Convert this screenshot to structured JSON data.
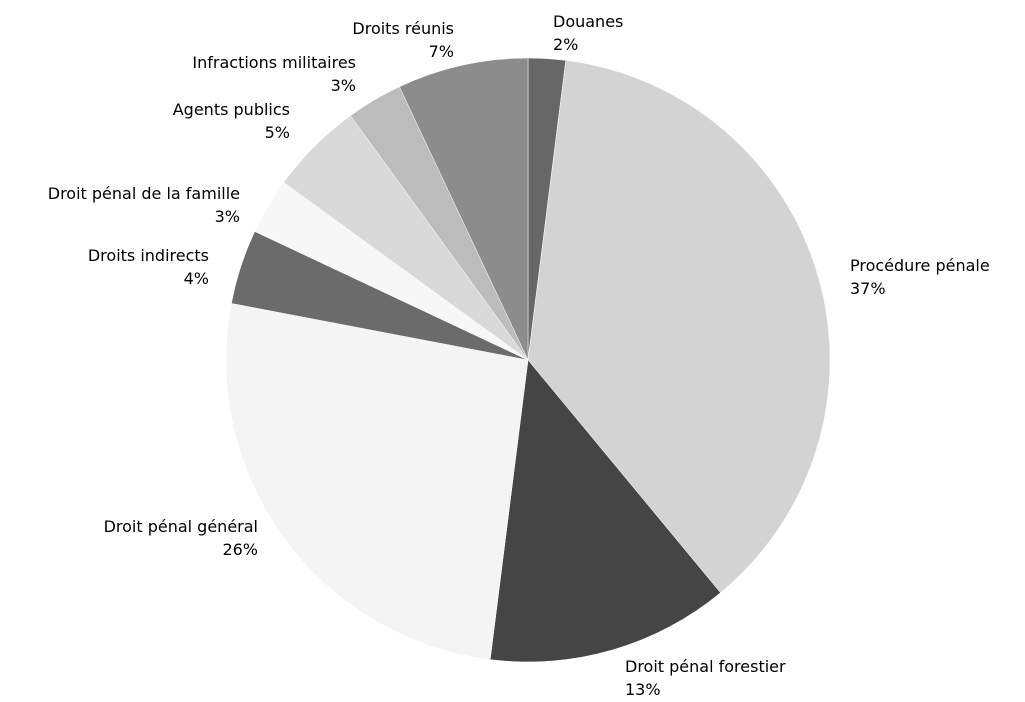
{
  "chart_data": {
    "type": "pie",
    "title": "",
    "start_angle_deg": 0,
    "direction": "clockwise",
    "slices": [
      {
        "label": "Douanes",
        "value": 2,
        "value_label": "2%",
        "color": "#676767"
      },
      {
        "label": "Procédure pénale",
        "value": 37,
        "value_label": "37%",
        "color": "#d3d3d3"
      },
      {
        "label": "Droit pénal forestier",
        "value": 13,
        "value_label": "13%",
        "color": "#454545"
      },
      {
        "label": "Droit pénal général",
        "value": 26,
        "value_label": "26%",
        "color": "#f4f4f4"
      },
      {
        "label": "Droits indirects",
        "value": 4,
        "value_label": "4%",
        "color": "#6b6b6b"
      },
      {
        "label": "Droit pénal de la famille",
        "value": 3,
        "value_label": "3%",
        "color": "#f7f7f7"
      },
      {
        "label": "Agents publics",
        "value": 5,
        "value_label": "5%",
        "color": "#d9d9d9"
      },
      {
        "label": "Infractions militaires",
        "value": 3,
        "value_label": "3%",
        "color": "#bcbcbc"
      },
      {
        "label": "Droits réunis",
        "value": 7,
        "value_label": "7%",
        "color": "#8c8c8c"
      }
    ]
  }
}
